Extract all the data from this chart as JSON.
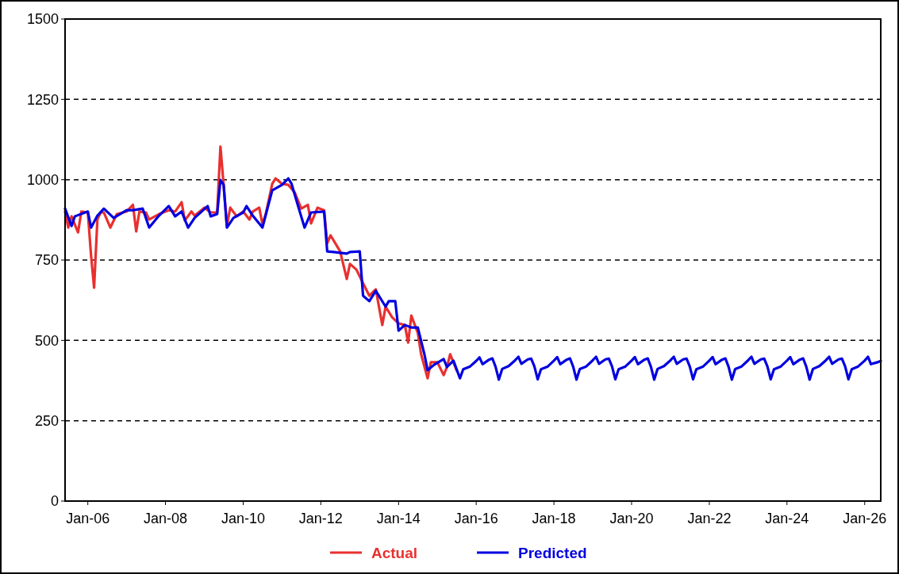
{
  "chart_data": {
    "type": "line",
    "xlim": [
      "2005-06",
      "2026-06"
    ],
    "xticks": [
      {
        "value": "2006-01",
        "label": "Jan-06"
      },
      {
        "value": "2008-01",
        "label": "Jan-08"
      },
      {
        "value": "2010-01",
        "label": "Jan-10"
      },
      {
        "value": "2012-01",
        "label": "Jan-12"
      },
      {
        "value": "2014-01",
        "label": "Jan-14"
      },
      {
        "value": "2016-01",
        "label": "Jan-16"
      },
      {
        "value": "2018-01",
        "label": "Jan-18"
      },
      {
        "value": "2020-01",
        "label": "Jan-20"
      },
      {
        "value": "2022-01",
        "label": "Jan-22"
      },
      {
        "value": "2024-01",
        "label": "Jan-24"
      },
      {
        "value": "2026-01",
        "label": "Jan-26"
      }
    ],
    "ylim": [
      0,
      1500
    ],
    "yticks": [
      0,
      250,
      500,
      750,
      1000,
      1250,
      1500
    ],
    "grid": "y",
    "legend": "bottom",
    "line_style": "solid",
    "series": [
      {
        "name": "Actual",
        "color": "#e8302f",
        "x": [
          "2005-06",
          "2005-07",
          "2005-08",
          "2005-10",
          "2005-11",
          "2006-01",
          "2006-02",
          "2006-03",
          "2006-04",
          "2006-05",
          "2006-06",
          "2006-08",
          "2006-10",
          "2007-01",
          "2007-03",
          "2007-04",
          "2007-05",
          "2007-07",
          "2007-08",
          "2007-11",
          "2008-02",
          "2008-04",
          "2008-06",
          "2008-07",
          "2008-09",
          "2008-10",
          "2009-01",
          "2009-03",
          "2009-05",
          "2009-06",
          "2009-07",
          "2009-08",
          "2009-09",
          "2009-11",
          "2010-01",
          "2010-03",
          "2010-04",
          "2010-06",
          "2010-07",
          "2010-08",
          "2010-10",
          "2010-11",
          "2011-01",
          "2011-03",
          "2011-05",
          "2011-07",
          "2011-09",
          "2011-10",
          "2011-12",
          "2012-02",
          "2012-03",
          "2012-04",
          "2012-07",
          "2012-09",
          "2012-10",
          "2012-12",
          "2013-02",
          "2013-04",
          "2013-06",
          "2013-08",
          "2013-09",
          "2013-11",
          "2014-01",
          "2014-03",
          "2014-04",
          "2014-05",
          "2014-07",
          "2014-08",
          "2014-10",
          "2014-11",
          "2015-01",
          "2015-03",
          "2015-04",
          "2015-05",
          "2015-07"
        ],
        "values": [
          901,
          851,
          886,
          836,
          901,
          898,
          762,
          664,
          876,
          898,
          898,
          851,
          893,
          901,
          922,
          839,
          901,
          898,
          876,
          893,
          905,
          901,
          930,
          873,
          901,
          888,
          913,
          898,
          898,
          1103,
          984,
          856,
          913,
          886,
          901,
          876,
          901,
          913,
          861,
          893,
          987,
          1004,
          987,
          984,
          960,
          910,
          922,
          864,
          913,
          905,
          802,
          827,
          777,
          691,
          738,
          720,
          678,
          639,
          659,
          548,
          605,
          572,
          553,
          548,
          493,
          577,
          523,
          457,
          382,
          432,
          432,
          392,
          417,
          457,
          407
        ]
      },
      {
        "name": "Predicted",
        "color": "#0000e0",
        "x": [
          "2005-06",
          "2005-08",
          "2005-09",
          "2006-01",
          "2006-02",
          "2006-04",
          "2006-06",
          "2006-09",
          "2007-01",
          "2007-03",
          "2007-06",
          "2007-08",
          "2007-11",
          "2008-02",
          "2008-04",
          "2008-06",
          "2008-08",
          "2008-10",
          "2009-02",
          "2009-03",
          "2009-05",
          "2009-06",
          "2009-07",
          "2009-08",
          "2009-10",
          "2010-01",
          "2010-02",
          "2010-04",
          "2010-07",
          "2010-10",
          "2011-01",
          "2011-03",
          "2011-04",
          "2011-06",
          "2011-08",
          "2011-10",
          "2012-02",
          "2012-03",
          "2012-05",
          "2012-09",
          "2012-10",
          "2013-01",
          "2013-02",
          "2013-04",
          "2013-06",
          "2013-09",
          "2013-10",
          "2013-12",
          "2014-01",
          "2014-03",
          "2014-05",
          "2014-07",
          "2014-09",
          "2014-10",
          "2014-12",
          "2015-03",
          "2015-04",
          "2015-06",
          "2015-08",
          "2015-09",
          "2015-11",
          "2016-01",
          "2016-02",
          "2016-03",
          "2016-05",
          "2016-06",
          "2016-07",
          "2016-08",
          "2016-09",
          "2016-11",
          "2017-01",
          "2017-02",
          "2017-03",
          "2017-05",
          "2017-06",
          "2017-07",
          "2017-08",
          "2017-09",
          "2017-11",
          "2018-01",
          "2018-02",
          "2018-03",
          "2018-05",
          "2018-06",
          "2018-07",
          "2018-08",
          "2018-09",
          "2018-11",
          "2019-01",
          "2019-02",
          "2019-03",
          "2019-05",
          "2019-06",
          "2019-07",
          "2019-08",
          "2019-09",
          "2019-11",
          "2020-01",
          "2020-02",
          "2020-03",
          "2020-05",
          "2020-06",
          "2020-07",
          "2020-08",
          "2020-09",
          "2020-11",
          "2021-01",
          "2021-02",
          "2021-03",
          "2021-05",
          "2021-06",
          "2021-07",
          "2021-08",
          "2021-09",
          "2021-11",
          "2022-01",
          "2022-02",
          "2022-03",
          "2022-05",
          "2022-06",
          "2022-07",
          "2022-08",
          "2022-09",
          "2022-11",
          "2023-01",
          "2023-02",
          "2023-03",
          "2023-05",
          "2023-06",
          "2023-07",
          "2023-08",
          "2023-09",
          "2023-11",
          "2024-01",
          "2024-02",
          "2024-03",
          "2024-05",
          "2024-06",
          "2024-07",
          "2024-08",
          "2024-09",
          "2024-11",
          "2025-01",
          "2025-02",
          "2025-03",
          "2025-05",
          "2025-06",
          "2025-07",
          "2025-08",
          "2025-09",
          "2025-11",
          "2026-01",
          "2026-02",
          "2026-03",
          "2026-05",
          "2026-06"
        ],
        "values": [
          910,
          856,
          886,
          901,
          851,
          888,
          910,
          881,
          905,
          905,
          910,
          851,
          888,
          918,
          886,
          901,
          851,
          881,
          918,
          886,
          893,
          999,
          984,
          851,
          881,
          898,
          918,
          888,
          851,
          967,
          984,
          1004,
          987,
          918,
          851,
          898,
          901,
          777,
          775,
          770,
          775,
          777,
          639,
          622,
          654,
          605,
          622,
          622,
          530,
          548,
          540,
          540,
          457,
          407,
          424,
          442,
          417,
          437,
          382,
          410,
          418,
          436,
          447,
          426,
          440,
          444,
          418,
          378,
          411,
          420,
          438,
          449,
          427,
          441,
          443,
          419,
          379,
          410,
          418,
          437,
          448,
          426,
          440,
          444,
          418,
          378,
          411,
          419,
          438,
          449,
          427,
          441,
          443,
          419,
          379,
          410,
          418,
          437,
          448,
          426,
          440,
          444,
          418,
          378,
          411,
          420,
          438,
          449,
          427,
          441,
          443,
          419,
          379,
          410,
          418,
          437,
          448,
          426,
          440,
          444,
          418,
          378,
          411,
          419,
          438,
          449,
          427,
          441,
          443,
          419,
          379,
          410,
          418,
          437,
          448,
          426,
          440,
          444,
          418,
          378,
          411,
          420,
          438,
          449,
          427,
          441,
          443,
          419,
          379,
          410,
          419,
          437,
          449,
          426,
          432,
          436
        ]
      }
    ]
  }
}
